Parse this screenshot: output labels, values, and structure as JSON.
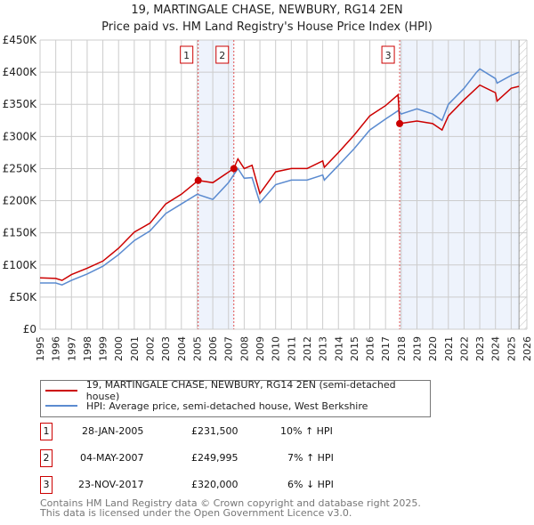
{
  "chart_data": {
    "type": "line",
    "title": "19, MARTINGALE CHASE, NEWBURY, RG14 2EN",
    "subtitle": "Price paid vs. HM Land Registry's House Price Index (HPI)",
    "xlim": [
      1995,
      2026
    ],
    "ylim": [
      0,
      450000
    ],
    "x_ticks": [
      "1995",
      "1996",
      "1997",
      "1998",
      "1999",
      "2000",
      "2001",
      "2002",
      "2003",
      "2004",
      "2005",
      "2006",
      "2007",
      "2008",
      "2009",
      "2010",
      "2011",
      "2012",
      "2013",
      "2014",
      "2015",
      "2016",
      "2017",
      "2018",
      "2019",
      "2020",
      "2021",
      "2022",
      "2023",
      "2024",
      "2025",
      "2026"
    ],
    "y_ticks": [
      {
        "value": 0,
        "label": "£0"
      },
      {
        "value": 50000,
        "label": "£50K"
      },
      {
        "value": 100000,
        "label": "£100K"
      },
      {
        "value": 150000,
        "label": "£150K"
      },
      {
        "value": 200000,
        "label": "£200K"
      },
      {
        "value": 250000,
        "label": "£250K"
      },
      {
        "value": 300000,
        "label": "£300K"
      },
      {
        "value": 350000,
        "label": "£350K"
      },
      {
        "value": 400000,
        "label": "£400K"
      },
      {
        "value": 450000,
        "label": "£450K"
      }
    ],
    "grid": true,
    "series": [
      {
        "name": "19, MARTINGALE CHASE, NEWBURY, RG14 2EN (semi-detached house)",
        "color": "#cc0000",
        "x": [
          1995,
          1996,
          1996.4,
          1997,
          1998,
          1999,
          2000,
          2001,
          2002,
          2003,
          2004,
          2005.07,
          2006,
          2007.34,
          2007.6,
          2008,
          2008.5,
          2009,
          2010,
          2011,
          2012,
          2013,
          2013.1,
          2014,
          2015,
          2016,
          2017,
          2017.8,
          2017.9,
          2019,
          2020,
          2020.6,
          2021,
          2022,
          2023,
          2024,
          2024.1,
          2025,
          2025.5
        ],
        "y": [
          80000,
          79000,
          76000,
          85000,
          95000,
          106000,
          126000,
          151000,
          165000,
          195000,
          210000,
          231500,
          228000,
          249995,
          265000,
          250000,
          255000,
          211000,
          245000,
          250000,
          250000,
          262000,
          252000,
          275000,
          302000,
          332000,
          348000,
          365000,
          320000,
          324000,
          320000,
          310000,
          332000,
          357000,
          380000,
          368000,
          355000,
          375000,
          378000
        ]
      },
      {
        "name": "HPI: Average price, semi-detached house, West Berkshire",
        "color": "#5b8bd0",
        "x": [
          1995,
          1996,
          1996.4,
          1997,
          1998,
          1999,
          2000,
          2001,
          2002,
          2003,
          2004,
          2005,
          2006,
          2007,
          2007.6,
          2008,
          2008.5,
          2009,
          2010,
          2011,
          2012,
          2013,
          2013.1,
          2014,
          2015,
          2016,
          2017,
          2017.8,
          2018,
          2019,
          2020,
          2020.6,
          2021,
          2022,
          2022.8,
          2023,
          2024,
          2024.1,
          2025,
          2025.5
        ],
        "y": [
          72000,
          72000,
          69000,
          76000,
          86000,
          98000,
          116000,
          138000,
          153000,
          180000,
          195000,
          210000,
          202000,
          228000,
          250000,
          235000,
          236000,
          197000,
          225000,
          232000,
          232000,
          240000,
          232000,
          255000,
          281000,
          310000,
          327000,
          340000,
          335000,
          343000,
          335000,
          325000,
          350000,
          375000,
          400000,
          405000,
          390000,
          383000,
          395000,
          400000
        ]
      }
    ],
    "sales": [
      {
        "label": "1",
        "x": 2005.07,
        "price": 231500
      },
      {
        "label": "2",
        "x": 2007.34,
        "price": 249995
      },
      {
        "label": "3",
        "x": 2017.9,
        "price": 320000
      }
    ],
    "data_end": 2025.5,
    "legend_position": "below"
  },
  "legend": {
    "property": "19, MARTINGALE CHASE, NEWBURY, RG14 2EN (semi-detached house)",
    "hpi": "HPI: Average price, semi-detached house, West Berkshire"
  },
  "transactions": [
    {
      "num": "1",
      "date": "28-JAN-2005",
      "price": "£231,500",
      "hpi": "10% ↑ HPI"
    },
    {
      "num": "2",
      "date": "04-MAY-2007",
      "price": "£249,995",
      "hpi": "7% ↑ HPI"
    },
    {
      "num": "3",
      "date": "23-NOV-2017",
      "price": "£320,000",
      "hpi": "6% ↓ HPI"
    }
  ],
  "footer": {
    "line1": "Contains HM Land Registry data © Crown copyright and database right 2025.",
    "line2": "This data is licensed under the Open Government Licence v3.0."
  }
}
